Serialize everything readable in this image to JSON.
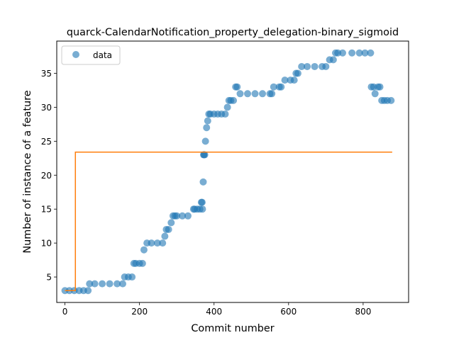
{
  "chart_data": {
    "type": "scatter",
    "title": "quarck-CalendarNotification_property_delegation-binary_sigmoid",
    "xlabel": "Commit number",
    "ylabel": "Number of instance of a feature",
    "xlim": [
      -22,
      922
    ],
    "ylim": [
      1.25,
      39.75
    ],
    "xticks": [
      0,
      200,
      400,
      600,
      800
    ],
    "yticks": [
      5,
      10,
      15,
      20,
      25,
      30,
      35
    ],
    "grid": false,
    "legend": {
      "placement": "top-left",
      "entries": [
        "data"
      ]
    },
    "series": [
      {
        "name": "data",
        "kind": "scatter",
        "color": "#1f77b4",
        "x": [
          0,
          12,
          25,
          38,
          50,
          62,
          66,
          80,
          100,
          120,
          140,
          155,
          160,
          170,
          180,
          185,
          190,
          200,
          208,
          212,
          220,
          232,
          248,
          262,
          268,
          272,
          278,
          285,
          290,
          295,
          300,
          315,
          330,
          345,
          348,
          355,
          362,
          366,
          368,
          369,
          371,
          372,
          373,
          375,
          377,
          380,
          383,
          386,
          390,
          400,
          410,
          420,
          430,
          436,
          440,
          445,
          452,
          458,
          462,
          470,
          490,
          510,
          530,
          550,
          555,
          560,
          575,
          580,
          590,
          605,
          615,
          620,
          625,
          635,
          650,
          670,
          690,
          700,
          710,
          720,
          726,
          732,
          745,
          770,
          790,
          805,
          820,
          822,
          828,
          832,
          840,
          845,
          850,
          857,
          865,
          875
        ],
        "y": [
          3,
          3,
          3,
          3,
          3,
          3,
          4,
          4,
          4,
          4,
          4,
          4,
          5,
          5,
          5,
          7,
          7,
          7,
          7,
          9,
          10,
          10,
          10,
          10,
          11,
          12,
          12,
          13,
          14,
          14,
          14,
          14,
          14,
          15,
          15,
          15,
          15,
          16,
          16,
          15,
          19,
          23,
          23,
          23,
          25,
          27,
          28,
          29,
          29,
          29,
          29,
          29,
          29,
          30,
          31,
          31,
          31,
          33,
          33,
          32,
          32,
          32,
          32,
          32,
          32,
          33,
          33,
          33,
          34,
          34,
          34,
          35,
          35,
          36,
          36,
          36,
          36,
          36,
          37,
          37,
          38,
          38,
          38,
          38,
          38,
          38,
          38,
          33,
          33,
          32,
          33,
          33,
          31,
          31,
          31,
          31
        ]
      },
      {
        "name": "",
        "kind": "line",
        "color": "#ff7f0e",
        "x": [
          0,
          28,
          28,
          878
        ],
        "y": [
          3.0,
          3.0,
          23.4,
          23.4
        ]
      }
    ]
  }
}
